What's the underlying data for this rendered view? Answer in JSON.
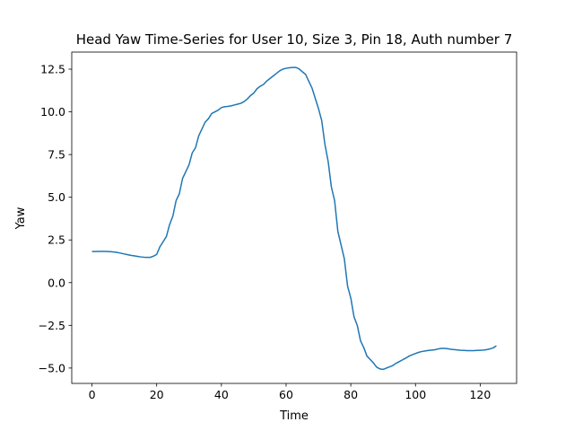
{
  "chart_data": {
    "type": "line",
    "title": "Head Yaw Time-Series for User 10, Size 3, Pin 18, Auth number 7",
    "xlabel": "Time",
    "ylabel": "Yaw",
    "xlim": [
      -6.25,
      131.25
    ],
    "ylim": [
      -5.9,
      13.5
    ],
    "xticks": [
      0,
      20,
      40,
      60,
      80,
      100,
      120
    ],
    "xtick_labels": [
      "0",
      "20",
      "40",
      "60",
      "80",
      "100",
      "120"
    ],
    "yticks": [
      -5.0,
      -2.5,
      0.0,
      2.5,
      5.0,
      7.5,
      10.0,
      12.5
    ],
    "ytick_labels": [
      "−5.0",
      "−2.5",
      "0.0",
      "2.5",
      "5.0",
      "7.5",
      "10.0",
      "12.5"
    ],
    "grid": false,
    "series": [
      {
        "color": "#1f77b4",
        "x": [
          0,
          1,
          2,
          3,
          4,
          5,
          6,
          7,
          8,
          9,
          10,
          11,
          12,
          13,
          14,
          15,
          16,
          17,
          18,
          19,
          20,
          21,
          22,
          23,
          24,
          25,
          26,
          27,
          28,
          29,
          30,
          31,
          32,
          33,
          34,
          35,
          36,
          37,
          38,
          39,
          40,
          41,
          42,
          43,
          44,
          45,
          46,
          47,
          48,
          49,
          50,
          51,
          52,
          53,
          54,
          55,
          56,
          57,
          58,
          59,
          60,
          61,
          62,
          63,
          64,
          65,
          66,
          67,
          68,
          69,
          70,
          71,
          72,
          73,
          74,
          75,
          76,
          77,
          78,
          79,
          80,
          81,
          82,
          83,
          84,
          85,
          86,
          87,
          88,
          89,
          90,
          91,
          92,
          93,
          94,
          95,
          96,
          97,
          98,
          99,
          100,
          101,
          102,
          103,
          104,
          105,
          106,
          107,
          108,
          109,
          110,
          111,
          112,
          113,
          114,
          115,
          116,
          117,
          118,
          119,
          120,
          121,
          122,
          123,
          124,
          125
        ],
        "y": [
          1.82,
          1.82,
          1.83,
          1.83,
          1.83,
          1.82,
          1.81,
          1.79,
          1.76,
          1.72,
          1.68,
          1.64,
          1.6,
          1.57,
          1.54,
          1.51,
          1.49,
          1.48,
          1.48,
          1.55,
          1.65,
          2.1,
          2.4,
          2.7,
          3.4,
          3.9,
          4.8,
          5.2,
          6.1,
          6.5,
          6.9,
          7.6,
          7.9,
          8.6,
          9.0,
          9.4,
          9.6,
          9.9,
          10.0,
          10.1,
          10.25,
          10.3,
          10.32,
          10.35,
          10.4,
          10.45,
          10.5,
          10.6,
          10.75,
          10.95,
          11.1,
          11.35,
          11.5,
          11.6,
          11.8,
          11.95,
          12.1,
          12.25,
          12.4,
          12.5,
          12.55,
          12.58,
          12.6,
          12.6,
          12.52,
          12.35,
          12.2,
          11.8,
          11.4,
          10.8,
          10.2,
          9.5,
          8.1,
          7.1,
          5.6,
          4.8,
          3.0,
          2.2,
          1.4,
          -0.2,
          -0.9,
          -2.0,
          -2.5,
          -3.4,
          -3.8,
          -4.3,
          -4.5,
          -4.7,
          -4.95,
          -5.05,
          -5.08,
          -5.0,
          -4.93,
          -4.85,
          -4.72,
          -4.62,
          -4.52,
          -4.42,
          -4.3,
          -4.22,
          -4.15,
          -4.08,
          -4.03,
          -4.0,
          -3.97,
          -3.95,
          -3.93,
          -3.88,
          -3.85,
          -3.85,
          -3.87,
          -3.9,
          -3.92,
          -3.94,
          -3.96,
          -3.97,
          -3.98,
          -3.98,
          -3.98,
          -3.97,
          -3.96,
          -3.95,
          -3.92,
          -3.88,
          -3.82,
          -3.7
        ]
      }
    ]
  }
}
